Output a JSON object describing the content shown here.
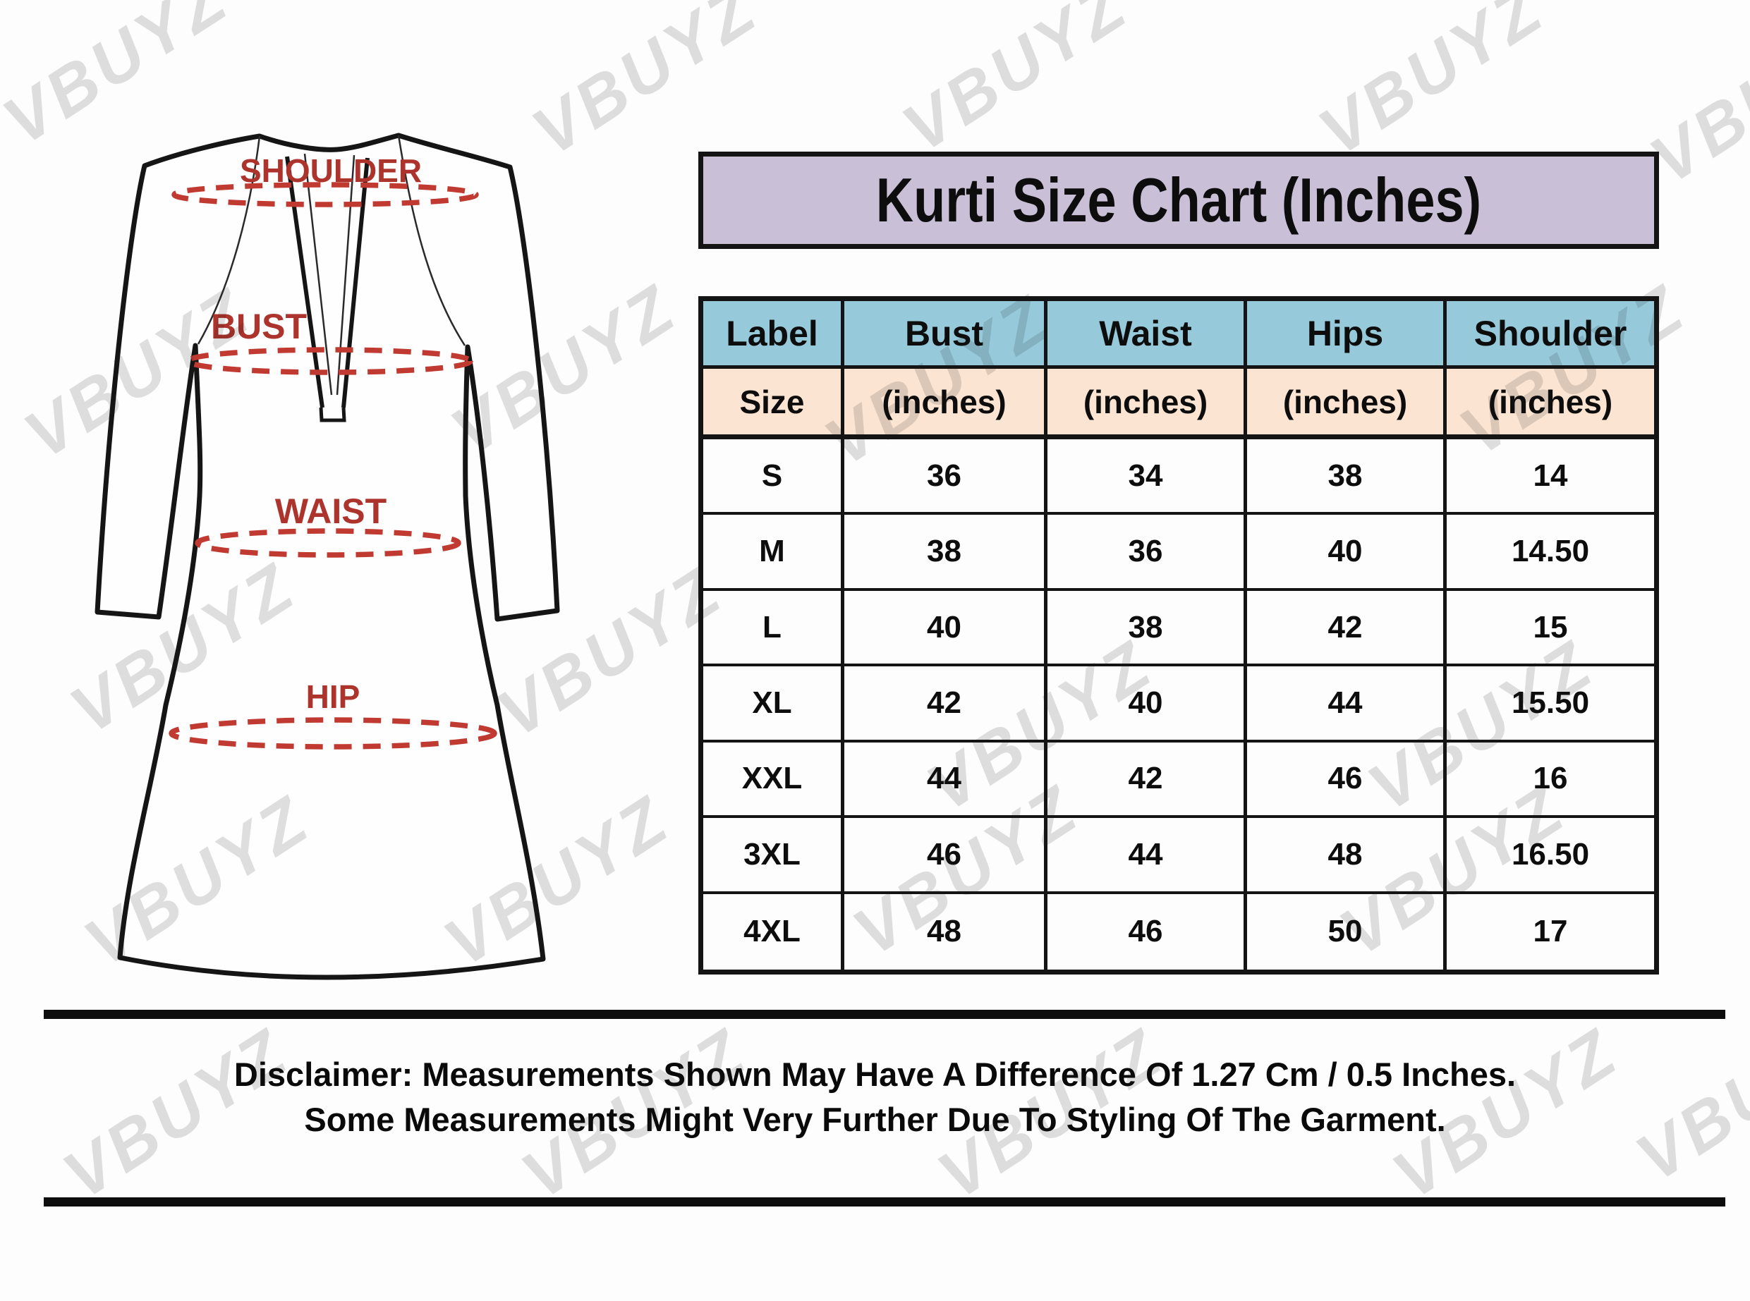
{
  "title": "Kurti Size Chart (Inches)",
  "watermark": {
    "text": "VBUYZ"
  },
  "garment_labels": {
    "shoulder": "SHOULDER",
    "bust": "BUST",
    "waist": "WAIST",
    "hip": "HIP"
  },
  "chart_data": {
    "type": "table",
    "title": "Kurti Size Chart (Inches)",
    "columns": [
      "Label",
      "Bust",
      "Waist",
      "Hips",
      "Shoulder"
    ],
    "units_row": [
      "Size",
      "(inches)",
      "(inches)",
      "(inches)",
      "(inches)"
    ],
    "rows": [
      [
        "S",
        "36",
        "34",
        "38",
        "14"
      ],
      [
        "M",
        "38",
        "36",
        "40",
        "14.50"
      ],
      [
        "L",
        "40",
        "38",
        "42",
        "15"
      ],
      [
        "XL",
        "42",
        "40",
        "44",
        "15.50"
      ],
      [
        "XXL",
        "44",
        "42",
        "46",
        "16"
      ],
      [
        "3XL",
        "46",
        "44",
        "48",
        "16.50"
      ],
      [
        "4XL",
        "48",
        "46",
        "50",
        "17"
      ]
    ]
  },
  "disclaimer": {
    "line1": "Disclaimer: Measurements Shown May Have A Difference Of 1.27 Cm / 0.5 Inches.",
    "line2": "Some Measurements Might Very Further Due To Styling Of The Garment."
  },
  "colors": {
    "title_bg": "#c9c0d7",
    "header_bg": "#96cadb",
    "subheader_bg": "#fbe4d1",
    "label_red": "#ad342c",
    "dash_red": "#c03a31",
    "line_black": "#141414"
  }
}
